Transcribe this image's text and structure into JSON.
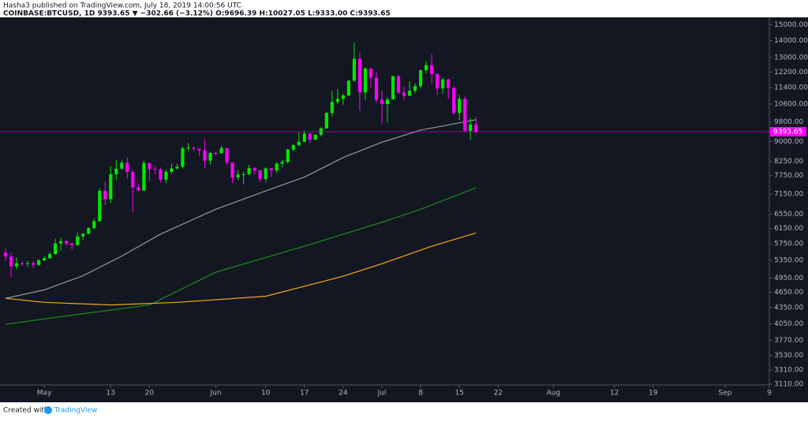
{
  "header": {
    "published": "Hasha3 published on TradingView.com, July 18, 2019 14:00:56 UTC",
    "symbol": "COINBASE:BTCUSD, 1D 9393.65 ▼ −302.66 (−3.12%) O:9696.39 H:10027.05 L:9333.00 C:9393.65"
  },
  "footer": {
    "created": "Created with",
    "brand": "TradingView"
  },
  "chart_data": {
    "type": "candlestick",
    "log_scale": true,
    "grid": false,
    "up_color": "#00e600",
    "down_color": "#ff00ff",
    "last_price_color": "#ff00ff",
    "xlim": [
      "2019-04-23",
      "2019-09-09"
    ],
    "ylim": [
      3100,
      15500
    ],
    "xticks": [
      {
        "value": "2019-05-01",
        "label": "May"
      },
      {
        "value": "2019-05-13",
        "label": "13"
      },
      {
        "value": "2019-05-20",
        "label": "20"
      },
      {
        "value": "2019-06-01",
        "label": "Jun"
      },
      {
        "value": "2019-06-10",
        "label": "10"
      },
      {
        "value": "2019-06-17",
        "label": "17"
      },
      {
        "value": "2019-06-24",
        "label": "24"
      },
      {
        "value": "2019-07-01",
        "label": "Jul"
      },
      {
        "value": "2019-07-08",
        "label": "8"
      },
      {
        "value": "2019-07-15",
        "label": "15"
      },
      {
        "value": "2019-07-22",
        "label": "22"
      },
      {
        "value": "2019-08-01",
        "label": "Aug"
      },
      {
        "value": "2019-08-12",
        "label": "12"
      },
      {
        "value": "2019-08-19",
        "label": "19"
      },
      {
        "value": "2019-09-01",
        "label": "Sep"
      },
      {
        "value": "2019-09-09",
        "label": "9"
      }
    ],
    "yticks": [
      {
        "value": 3110,
        "label": "3110.00"
      },
      {
        "value": 3310,
        "label": "3310.00"
      },
      {
        "value": 3530,
        "label": "3530.00"
      },
      {
        "value": 3770,
        "label": "3770.00"
      },
      {
        "value": 4050,
        "label": "4050.00"
      },
      {
        "value": 4350,
        "label": "4350.00"
      },
      {
        "value": 4650,
        "label": "4650.00"
      },
      {
        "value": 4950,
        "label": "4950.00"
      },
      {
        "value": 5350,
        "label": "5350.00"
      },
      {
        "value": 5750,
        "label": "5750.00"
      },
      {
        "value": 6150,
        "label": "6150.00"
      },
      {
        "value": 6550,
        "label": "6550.00"
      },
      {
        "value": 7150,
        "label": "7150.00"
      },
      {
        "value": 7750,
        "label": "7750.00"
      },
      {
        "value": 8250,
        "label": "8250.00"
      },
      {
        "value": 9000,
        "label": "9000.00"
      },
      {
        "value": 9800,
        "label": "9800.00"
      },
      {
        "value": 10600,
        "label": "10600.00"
      },
      {
        "value": 11400,
        "label": "11400.00"
      },
      {
        "value": 12200,
        "label": "12200.00"
      },
      {
        "value": 13000,
        "label": "13000.00"
      },
      {
        "value": 14000,
        "label": "14000.00"
      },
      {
        "value": 15000,
        "label": "15000.00"
      }
    ],
    "x": [
      "2019-04-24",
      "2019-04-25",
      "2019-04-26",
      "2019-04-27",
      "2019-04-28",
      "2019-04-29",
      "2019-04-30",
      "2019-05-01",
      "2019-05-02",
      "2019-05-03",
      "2019-05-04",
      "2019-05-05",
      "2019-05-06",
      "2019-05-07",
      "2019-05-08",
      "2019-05-09",
      "2019-05-10",
      "2019-05-11",
      "2019-05-12",
      "2019-05-13",
      "2019-05-14",
      "2019-05-15",
      "2019-05-16",
      "2019-05-17",
      "2019-05-18",
      "2019-05-19",
      "2019-05-20",
      "2019-05-21",
      "2019-05-22",
      "2019-05-23",
      "2019-05-24",
      "2019-05-25",
      "2019-05-26",
      "2019-05-27",
      "2019-05-28",
      "2019-05-29",
      "2019-05-30",
      "2019-05-31",
      "2019-06-01",
      "2019-06-02",
      "2019-06-03",
      "2019-06-04",
      "2019-06-05",
      "2019-06-06",
      "2019-06-07",
      "2019-06-08",
      "2019-06-09",
      "2019-06-10",
      "2019-06-11",
      "2019-06-12",
      "2019-06-13",
      "2019-06-14",
      "2019-06-15",
      "2019-06-16",
      "2019-06-17",
      "2019-06-18",
      "2019-06-19",
      "2019-06-20",
      "2019-06-21",
      "2019-06-22",
      "2019-06-23",
      "2019-06-24",
      "2019-06-25",
      "2019-06-26",
      "2019-06-27",
      "2019-06-28",
      "2019-06-29",
      "2019-06-30",
      "2019-07-01",
      "2019-07-02",
      "2019-07-03",
      "2019-07-04",
      "2019-07-05",
      "2019-07-06",
      "2019-07-07",
      "2019-07-08",
      "2019-07-09",
      "2019-07-10",
      "2019-07-11",
      "2019-07-12",
      "2019-07-13",
      "2019-07-14",
      "2019-07-15",
      "2019-07-16",
      "2019-07-17",
      "2019-07-18"
    ],
    "open": [
      5530,
      5440,
      5210,
      5280,
      5270,
      5285,
      5245,
      5350,
      5400,
      5500,
      5760,
      5820,
      5760,
      5720,
      5940,
      6010,
      6160,
      6350,
      7250,
      6990,
      7800,
      7990,
      8200,
      7880,
      7360,
      7260,
      8190,
      7980,
      7950,
      7620,
      7880,
      8000,
      8060,
      8740,
      8760,
      8720,
      8660,
      8280,
      8560,
      8550,
      8740,
      8210,
      7690,
      7790,
      7800,
      8010,
      7930,
      7640,
      8000,
      7930,
      8170,
      8230,
      8690,
      8860,
      8990,
      9320,
      9080,
      9270,
      9530,
      10200,
      10700,
      10850,
      11010,
      11750,
      12930,
      11160,
      12390,
      11900,
      10800,
      10600,
      10820,
      11980,
      11150,
      11000,
      11240,
      11470,
      12300,
      12570,
      12100,
      11350,
      11810,
      11380,
      10200,
      10850,
      9430,
      9696.39
    ],
    "high": [
      5630,
      5530,
      5420,
      5330,
      5340,
      5320,
      5380,
      5440,
      5550,
      5880,
      5910,
      5840,
      5780,
      6050,
      6030,
      6180,
      6420,
      7330,
      7550,
      8080,
      8300,
      8290,
      8380,
      7950,
      7490,
      8280,
      8190,
      8100,
      8030,
      7950,
      8170,
      8160,
      8800,
      8940,
      8800,
      8720,
      9090,
      8600,
      8620,
      8830,
      8750,
      8220,
      7950,
      7880,
      8130,
      8050,
      7950,
      8050,
      8010,
      8210,
      8310,
      8720,
      8880,
      9390,
      9440,
      9340,
      9300,
      9580,
      10220,
      11230,
      11320,
      11100,
      11780,
      13880,
      13320,
      12430,
      12400,
      12200,
      11250,
      10920,
      12010,
      12050,
      11420,
      11700,
      11620,
      12320,
      12800,
      13200,
      12110,
      11900,
      11850,
      11450,
      11040,
      11000,
      9960,
      10027.05
    ],
    "low": [
      5330,
      4970,
      5140,
      5220,
      5200,
      5170,
      5220,
      5330,
      5380,
      5480,
      5580,
      5710,
      5600,
      5700,
      5850,
      5990,
      6130,
      6340,
      6820,
      6880,
      7620,
      7960,
      7660,
      6600,
      7240,
      7260,
      7570,
      7800,
      7530,
      7500,
      7800,
      7960,
      8000,
      8640,
      8620,
      8450,
      8020,
      8130,
      8470,
      8530,
      8110,
      7500,
      7600,
      7460,
      7760,
      7790,
      7530,
      7520,
      7700,
      7830,
      8030,
      8170,
      8610,
      8820,
      8980,
      8940,
      9050,
      9200,
      9530,
      10040,
      10600,
      10560,
      10980,
      11700,
      10300,
      10800,
      11380,
      10670,
      9720,
      9780,
      10820,
      11070,
      10790,
      10980,
      11100,
      11360,
      12120,
      11600,
      11030,
      11100,
      10850,
      10110,
      9880,
      9380,
      9070,
      9333.0
    ],
    "close": [
      5440,
      5210,
      5280,
      5270,
      5285,
      5245,
      5350,
      5400,
      5500,
      5760,
      5820,
      5760,
      5720,
      5940,
      6010,
      6160,
      6350,
      7250,
      6990,
      7800,
      7990,
      8200,
      7880,
      7360,
      7260,
      8190,
      7980,
      7950,
      7620,
      7880,
      8000,
      8060,
      8740,
      8760,
      8720,
      8660,
      8280,
      8560,
      8550,
      8740,
      8210,
      7690,
      7790,
      7800,
      8010,
      7930,
      7640,
      8000,
      7930,
      8170,
      8230,
      8690,
      8860,
      8990,
      9320,
      9080,
      9270,
      9530,
      10200,
      10700,
      10850,
      11010,
      11750,
      12930,
      11160,
      12390,
      11900,
      10800,
      10600,
      10820,
      11980,
      11150,
      11000,
      11240,
      11470,
      12300,
      12570,
      12100,
      11350,
      11810,
      11380,
      10200,
      10850,
      9430,
      9696.39,
      9393.65
    ],
    "lines": [
      {
        "color": "#9598a1",
        "x": [
          "2019-04-24",
          "2019-05-01",
          "2019-05-08",
          "2019-05-15",
          "2019-05-22",
          "2019-06-01",
          "2019-06-10",
          "2019-06-17",
          "2019-06-24",
          "2019-07-01",
          "2019-07-08",
          "2019-07-18"
        ],
        "values": [
          4530,
          4700,
          5000,
          5450,
          6000,
          6690,
          7250,
          7700,
          8390,
          8970,
          9460,
          9900
        ]
      },
      {
        "color": "#1b8a1b",
        "x": [
          "2019-04-24",
          "2019-05-01",
          "2019-05-20",
          "2019-06-01",
          "2019-06-17",
          "2019-07-01",
          "2019-07-08",
          "2019-07-18"
        ],
        "values": [
          4040,
          4140,
          4400,
          5080,
          5690,
          6320,
          6690,
          7350
        ]
      },
      {
        "color": "#f5a623",
        "x": [
          "2019-04-24",
          "2019-05-01",
          "2019-05-13",
          "2019-05-25",
          "2019-06-10",
          "2019-06-24",
          "2019-07-01",
          "2019-07-10",
          "2019-07-18"
        ],
        "values": [
          4530,
          4450,
          4400,
          4450,
          4570,
          4990,
          5270,
          5690,
          6030
        ]
      }
    ]
  }
}
